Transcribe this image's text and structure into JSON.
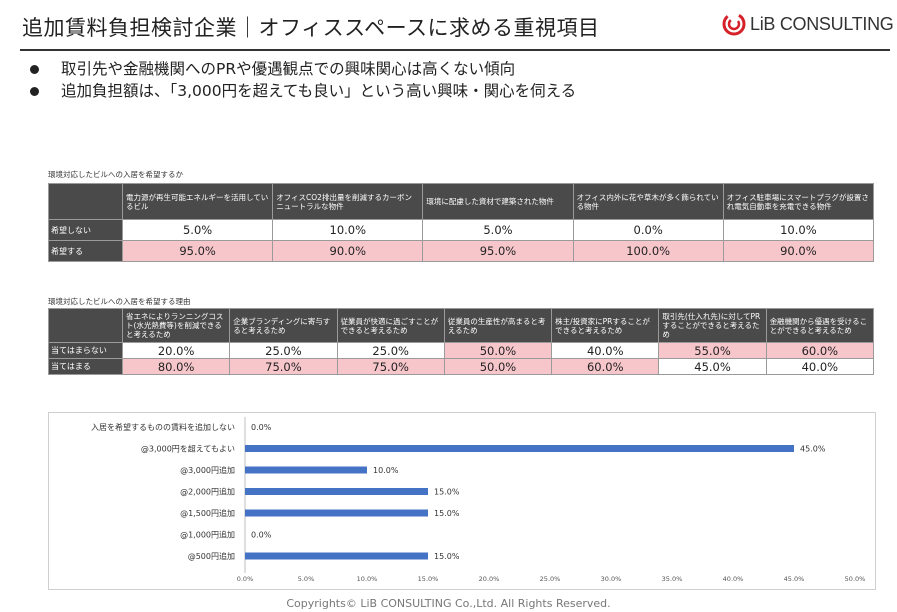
{
  "header": {
    "title": "追加賃料負担検討企業｜オフィススペースに求める重視項目",
    "logo_text": "LiB CONSULTING",
    "logo_color": "#d6202a"
  },
  "bullets": [
    "取引先や金融機関へのPRや優遇観点での興味関心は高くない傾向",
    "追加負担額は、「3,000円を超えても良い」という高い興味・関心を伺える"
  ],
  "table1": {
    "caption": "環境対応したビルへの入居を希望するか",
    "columns": [
      "電力源が再生可能エネルギーを活用しているビル",
      "オフィスCO2排出量を削減するカーボンニュートラルな物件",
      "環境に配慮した資材で建築された物件",
      "オフィス内外に花や草木が多く飾られている物件",
      "オフィス駐車場にスマートプラグが設置され電気自動車を充電できる物件"
    ],
    "rows": [
      {
        "label": "希望しない",
        "values": [
          "5.0%",
          "10.0%",
          "5.0%",
          "0.0%",
          "10.0%"
        ],
        "highlight": [
          false,
          false,
          false,
          false,
          false
        ]
      },
      {
        "label": "希望する",
        "values": [
          "95.0%",
          "90.0%",
          "95.0%",
          "100.0%",
          "90.0%"
        ],
        "highlight": [
          true,
          true,
          true,
          true,
          true
        ]
      }
    ]
  },
  "table2": {
    "caption": "環境対応したビルへの入居を希望する理由",
    "columns": [
      "省エネによりランニングコスト(水光熱費等)を削減できると考えるため",
      "企業ブランディングに寄与すると考えるため",
      "従業員が快適に過ごすことができると考えるため",
      "従業員の生産性が高まると考えるため",
      "株主/投資家にPRすることができると考えるため",
      "取引先(仕入れ先)に対してPRすることができると考えるため",
      "金融機関から優遇を受けることができると考えるため"
    ],
    "rows": [
      {
        "label": "当てはまらない",
        "values": [
          "20.0%",
          "25.0%",
          "25.0%",
          "50.0%",
          "40.0%",
          "55.0%",
          "60.0%"
        ],
        "highlight": [
          false,
          false,
          false,
          true,
          false,
          true,
          true
        ]
      },
      {
        "label": "当てはまる",
        "values": [
          "80.0%",
          "75.0%",
          "75.0%",
          "50.0%",
          "60.0%",
          "45.0%",
          "40.0%"
        ],
        "highlight": [
          true,
          true,
          true,
          true,
          true,
          false,
          false
        ]
      }
    ]
  },
  "chart_data": {
    "type": "bar",
    "orientation": "horizontal",
    "categories": [
      "入居を希望するものの賃料を追加しない",
      "@3,000円を超えてもよい",
      "@3,000円追加",
      "@2,000円追加",
      "@1,500円追加",
      "@1,000円追加",
      "@500円追加"
    ],
    "values": [
      0.0,
      45.0,
      10.0,
      15.0,
      15.0,
      0.0,
      15.0
    ],
    "value_labels": [
      "0.0%",
      "45.0%",
      "10.0%",
      "15.0%",
      "15.0%",
      "0.0%",
      "15.0%"
    ],
    "xlim": [
      0,
      50
    ],
    "xticks": [
      "0.0%",
      "5.0%",
      "10.0%",
      "15.0%",
      "20.0%",
      "25.0%",
      "30.0%",
      "35.0%",
      "40.0%",
      "45.0%",
      "50.0%"
    ],
    "bar_color": "#4472c4",
    "title": "",
    "xlabel": "",
    "ylabel": ""
  },
  "footer": "Copyrights© LiB CONSULTING Co.,Ltd. All Rights Reserved."
}
